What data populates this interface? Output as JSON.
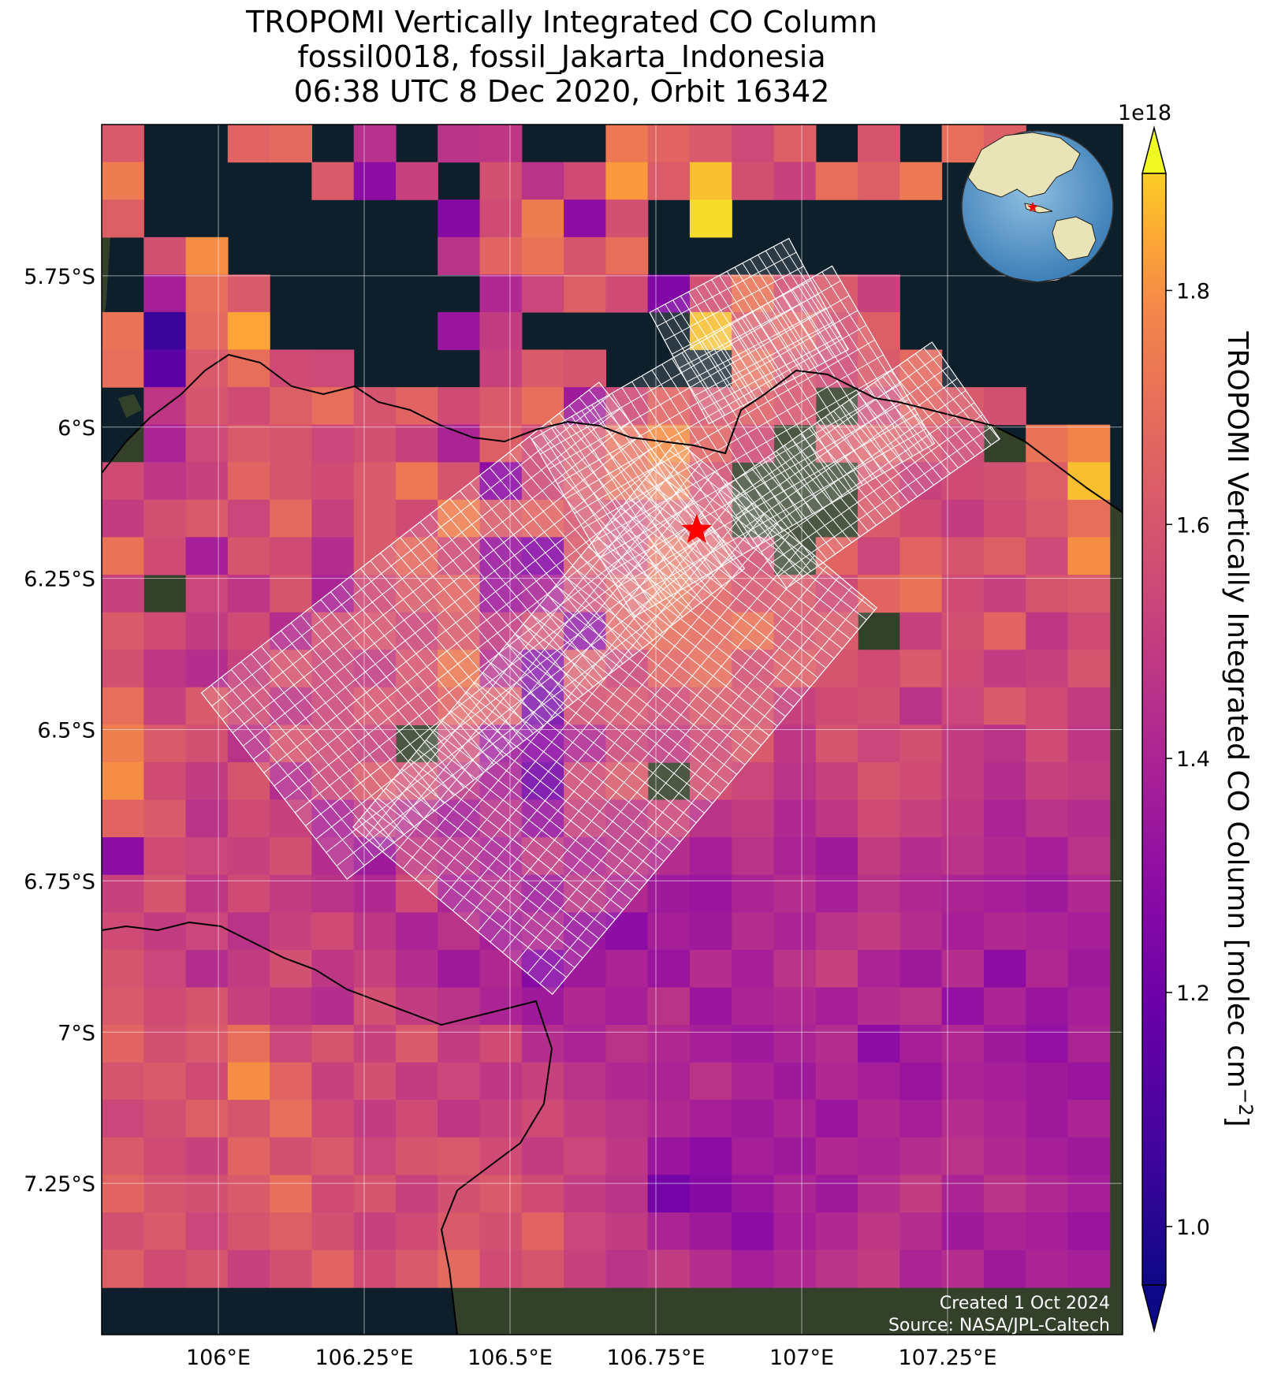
{
  "title": {
    "line1": "TROPOMI Vertically Integrated CO Column",
    "line2": "fossil0018, fossil_Jakarta_Indonesia",
    "line3": "06:38 UTC 8 Dec 2020, Orbit 16342"
  },
  "map": {
    "lon_range": [
      105.8,
      107.55
    ],
    "lat_range": [
      -7.5,
      -5.5
    ],
    "x_ticks": [
      {
        "value": 106.0,
        "label": "106°E"
      },
      {
        "value": 106.25,
        "label": "106.25°E"
      },
      {
        "value": 106.5,
        "label": "106.5°E"
      },
      {
        "value": 106.75,
        "label": "106.75°E"
      },
      {
        "value": 107.0,
        "label": "107°E"
      },
      {
        "value": 107.25,
        "label": "107.25°E"
      }
    ],
    "y_ticks": [
      {
        "value": -5.75,
        "label": "5.75°S"
      },
      {
        "value": -6.0,
        "label": "6°S"
      },
      {
        "value": -6.25,
        "label": "6.25°S"
      },
      {
        "value": -6.5,
        "label": "6.5°S"
      },
      {
        "value": -6.75,
        "label": "6.75°S"
      },
      {
        "value": -7.0,
        "label": "7°S"
      },
      {
        "value": -7.25,
        "label": "7.25°S"
      }
    ],
    "grid": true,
    "target": {
      "lon": 106.82,
      "lat": -6.17,
      "color": "#ff0000",
      "icon": "red-star-icon"
    },
    "credits": {
      "line1": "Created 1 Oct 2024",
      "line2": "Source: NASA/JPL-Caltech"
    },
    "inset": {
      "type": "globe",
      "marker_color": "#ff0000"
    },
    "ocean_color": "#0e1f2c",
    "land_color": "#33402a",
    "mesh_color": "#ffffff"
  },
  "colorbar": {
    "label": "TROPOMI Vertically Integrated CO Column [molec cm",
    "label_superscript": "−2",
    "label_close": "]",
    "scale_label": "1e18",
    "vmin": 0.95,
    "vmax": 1.9,
    "ticks": [
      {
        "value": 1.0,
        "label": "1.0"
      },
      {
        "value": 1.2,
        "label": "1.2"
      },
      {
        "value": 1.4,
        "label": "1.4"
      },
      {
        "value": 1.6,
        "label": "1.6"
      },
      {
        "value": 1.8,
        "label": "1.8"
      }
    ],
    "colormap": "plasma",
    "extend": "both"
  },
  "chart_data": {
    "type": "heatmap",
    "title": "TROPOMI Vertically Integrated CO Column",
    "units": "molec cm−2 (×1e18)",
    "grid": true,
    "cell_lon_step": 0.072,
    "cell_lat_step": 0.062,
    "lon_start": 105.8,
    "lat_start": -5.5,
    "no_data": -1,
    "values": [
      [
        1.62,
        -1,
        -1,
        1.66,
        1.68,
        -1,
        1.45,
        -1,
        1.46,
        1.48,
        -1,
        -1,
        1.74,
        1.66,
        1.62,
        1.55,
        1.64,
        -1,
        1.6,
        -1,
        1.7,
        1.64,
        -1,
        -1
      ],
      [
        1.75,
        -1,
        -1,
        -1,
        -1,
        1.62,
        1.3,
        1.52,
        -1,
        1.58,
        1.46,
        1.56,
        1.82,
        1.63,
        1.86,
        1.58,
        1.52,
        1.7,
        1.64,
        1.74,
        -1,
        -1,
        -1,
        -1
      ],
      [
        1.64,
        -1,
        -1,
        -1,
        -1,
        -1,
        -1,
        -1,
        1.28,
        1.56,
        1.75,
        1.3,
        1.58,
        -1,
        1.88,
        -1,
        -1,
        -1,
        -1,
        -1,
        -1,
        -1,
        -1,
        -1
      ],
      [
        -1,
        1.58,
        1.8,
        -1,
        -1,
        -1,
        -1,
        -1,
        1.46,
        1.66,
        1.72,
        1.6,
        1.7,
        -1,
        -1,
        -1,
        -1,
        -1,
        -1,
        -1,
        -1,
        -1,
        -1,
        -1
      ],
      [
        -1,
        1.38,
        1.7,
        1.62,
        -1,
        -1,
        -1,
        -1,
        -1,
        1.42,
        1.54,
        1.64,
        1.56,
        1.26,
        1.58,
        1.72,
        1.58,
        1.62,
        1.52,
        -1,
        -1,
        -1,
        -1,
        -1
      ],
      [
        1.72,
        1.05,
        1.68,
        1.84,
        -1,
        -1,
        -1,
        -1,
        1.34,
        1.5,
        -1,
        -1,
        -1,
        -1,
        1.86,
        1.62,
        1.66,
        1.58,
        1.64,
        -1,
        -1,
        -1,
        -1,
        -1
      ],
      [
        1.7,
        1.14,
        1.62,
        1.7,
        1.56,
        1.55,
        -1,
        -1,
        -1,
        1.52,
        1.62,
        1.6,
        -1,
        -1,
        -1,
        1.7,
        1.6,
        1.56,
        1.62,
        1.68,
        -1,
        -1,
        -1,
        -1
      ],
      [
        -1,
        1.48,
        1.6,
        1.56,
        1.64,
        1.7,
        1.6,
        1.66,
        1.56,
        1.62,
        1.7,
        1.36,
        1.55,
        1.66,
        1.6,
        1.64,
        1.6,
        -1,
        1.56,
        1.66,
        1.62,
        1.58,
        -1,
        -1
      ],
      [
        -1,
        1.4,
        1.55,
        1.62,
        1.6,
        1.54,
        1.58,
        1.52,
        1.4,
        1.64,
        1.56,
        1.6,
        1.7,
        1.8,
        1.66,
        1.56,
        -1,
        1.62,
        1.64,
        1.6,
        1.55,
        -1,
        1.72,
        1.78
      ],
      [
        1.56,
        1.48,
        1.52,
        1.66,
        1.6,
        1.56,
        1.62,
        1.74,
        1.6,
        1.3,
        1.55,
        1.62,
        1.7,
        1.74,
        1.58,
        -1,
        -1,
        -1,
        1.6,
        1.52,
        1.56,
        1.58,
        1.64,
        1.86
      ],
      [
        1.5,
        1.58,
        1.62,
        1.54,
        1.68,
        1.52,
        1.62,
        1.56,
        1.76,
        1.62,
        1.66,
        1.6,
        1.56,
        1.62,
        1.6,
        -1,
        -1,
        -1,
        1.62,
        1.56,
        1.5,
        1.56,
        1.62,
        1.7
      ],
      [
        1.72,
        1.56,
        1.38,
        1.6,
        1.56,
        1.44,
        1.62,
        1.68,
        1.56,
        1.34,
        1.28,
        1.62,
        1.56,
        1.7,
        1.64,
        1.58,
        -1,
        1.66,
        1.54,
        1.66,
        1.6,
        1.64,
        1.55,
        1.8
      ],
      [
        1.52,
        -1,
        1.54,
        1.48,
        1.6,
        1.4,
        1.55,
        1.62,
        1.66,
        1.36,
        1.4,
        1.56,
        1.64,
        1.72,
        1.66,
        1.6,
        1.62,
        1.56,
        1.66,
        1.72,
        1.56,
        1.52,
        1.6,
        1.62
      ],
      [
        1.62,
        1.56,
        1.5,
        1.56,
        1.44,
        1.58,
        1.6,
        1.54,
        1.62,
        1.5,
        1.58,
        1.3,
        1.66,
        1.7,
        1.68,
        1.72,
        1.6,
        1.62,
        -1,
        1.52,
        1.58,
        1.66,
        1.48,
        1.56
      ],
      [
        1.58,
        1.48,
        1.44,
        1.52,
        1.6,
        1.54,
        1.5,
        1.6,
        1.74,
        1.44,
        1.26,
        1.62,
        1.54,
        1.66,
        1.7,
        1.58,
        1.64,
        1.6,
        1.56,
        1.62,
        1.56,
        1.5,
        1.52,
        1.6
      ],
      [
        1.7,
        1.52,
        1.62,
        1.56,
        1.48,
        1.54,
        1.6,
        1.58,
        1.66,
        1.62,
        1.22,
        1.58,
        1.6,
        1.56,
        1.62,
        1.6,
        1.52,
        1.56,
        1.58,
        1.46,
        1.54,
        1.62,
        1.56,
        1.5
      ],
      [
        1.76,
        1.62,
        1.58,
        1.46,
        1.6,
        1.56,
        1.52,
        -1,
        1.56,
        1.36,
        1.3,
        1.42,
        1.54,
        1.5,
        1.56,
        1.62,
        1.48,
        1.6,
        1.54,
        1.58,
        1.5,
        1.46,
        1.56,
        1.48
      ],
      [
        1.8,
        1.56,
        1.5,
        1.6,
        1.44,
        1.54,
        1.62,
        1.58,
        1.48,
        1.4,
        1.22,
        1.56,
        1.62,
        -1,
        1.58,
        1.54,
        1.46,
        1.52,
        1.6,
        1.56,
        1.5,
        1.44,
        1.52,
        1.5
      ],
      [
        1.66,
        1.62,
        1.46,
        1.56,
        1.52,
        1.4,
        1.5,
        1.44,
        1.38,
        1.46,
        1.34,
        1.52,
        1.48,
        1.54,
        1.46,
        1.5,
        1.42,
        1.48,
        1.56,
        1.52,
        1.48,
        1.4,
        1.46,
        1.44
      ],
      [
        1.3,
        1.56,
        1.54,
        1.52,
        1.58,
        1.44,
        1.36,
        1.5,
        1.46,
        1.4,
        1.5,
        1.42,
        1.48,
        1.44,
        1.38,
        1.46,
        1.4,
        1.36,
        1.5,
        1.44,
        1.46,
        1.42,
        1.38,
        1.46
      ],
      [
        1.52,
        1.6,
        1.48,
        1.56,
        1.5,
        1.46,
        1.42,
        1.56,
        1.4,
        1.44,
        1.36,
        1.48,
        1.42,
        1.36,
        1.34,
        1.4,
        1.44,
        1.38,
        1.46,
        1.42,
        1.4,
        1.38,
        1.36,
        1.42
      ],
      [
        1.56,
        1.5,
        1.54,
        1.46,
        1.52,
        1.56,
        1.48,
        1.4,
        1.46,
        1.38,
        1.42,
        1.34,
        1.3,
        1.38,
        1.36,
        1.44,
        1.4,
        1.46,
        1.5,
        1.44,
        1.38,
        1.42,
        1.4,
        1.38
      ],
      [
        1.6,
        1.54,
        1.44,
        1.5,
        1.58,
        1.48,
        1.52,
        1.44,
        1.36,
        1.42,
        1.28,
        1.36,
        1.4,
        1.34,
        1.44,
        1.38,
        1.46,
        1.52,
        1.4,
        1.36,
        1.44,
        1.3,
        1.42,
        1.36
      ],
      [
        1.62,
        1.56,
        1.6,
        1.52,
        1.48,
        1.44,
        1.58,
        1.5,
        1.46,
        1.4,
        1.36,
        1.42,
        1.38,
        1.46,
        1.34,
        1.4,
        1.42,
        1.38,
        1.44,
        1.46,
        1.32,
        1.4,
        1.34,
        1.38
      ],
      [
        1.66,
        1.58,
        1.62,
        1.7,
        1.54,
        1.6,
        1.52,
        1.62,
        1.5,
        1.56,
        1.44,
        1.4,
        1.46,
        1.42,
        1.38,
        1.36,
        1.4,
        1.44,
        1.3,
        1.38,
        1.42,
        1.36,
        1.32,
        1.4
      ],
      [
        1.6,
        1.62,
        1.56,
        1.8,
        1.66,
        1.52,
        1.58,
        1.5,
        1.54,
        1.48,
        1.52,
        1.46,
        1.42,
        1.4,
        1.46,
        1.4,
        1.36,
        1.42,
        1.38,
        1.34,
        1.4,
        1.38,
        1.36,
        1.34
      ],
      [
        1.54,
        1.58,
        1.64,
        1.6,
        1.7,
        1.56,
        1.5,
        1.56,
        1.48,
        1.52,
        1.56,
        1.5,
        1.46,
        1.42,
        1.38,
        1.36,
        1.4,
        1.34,
        1.42,
        1.38,
        1.44,
        1.4,
        1.36,
        1.4
      ],
      [
        1.62,
        1.56,
        1.52,
        1.66,
        1.58,
        1.62,
        1.54,
        1.6,
        1.62,
        1.56,
        1.5,
        1.54,
        1.48,
        1.34,
        1.3,
        1.38,
        1.36,
        1.42,
        1.4,
        1.44,
        1.46,
        1.42,
        1.38,
        1.36
      ],
      [
        1.66,
        1.6,
        1.58,
        1.62,
        1.7,
        1.56,
        1.6,
        1.52,
        1.58,
        1.62,
        1.56,
        1.5,
        1.46,
        1.22,
        1.28,
        1.34,
        1.4,
        1.36,
        1.44,
        1.5,
        1.4,
        1.46,
        1.42,
        1.38
      ],
      [
        1.58,
        1.62,
        1.54,
        1.6,
        1.64,
        1.58,
        1.52,
        1.56,
        1.62,
        1.58,
        1.66,
        1.54,
        1.5,
        1.4,
        1.36,
        1.3,
        1.38,
        1.42,
        1.48,
        1.44,
        1.36,
        1.4,
        1.38,
        1.34
      ],
      [
        1.64,
        1.56,
        1.6,
        1.52,
        1.58,
        1.66,
        1.56,
        1.62,
        1.68,
        1.56,
        1.6,
        1.52,
        1.46,
        1.5,
        1.44,
        1.38,
        1.42,
        1.46,
        1.5,
        1.4,
        1.44,
        1.36,
        1.4,
        1.38
      ]
    ]
  }
}
